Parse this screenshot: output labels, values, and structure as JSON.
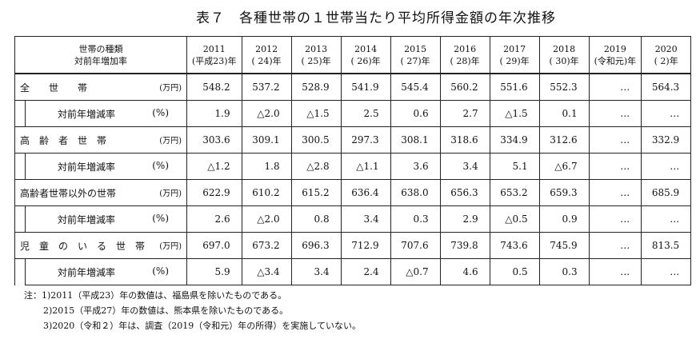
{
  "title": "表７　各種世帯の１世帯当たり平均所得金額の年次推移",
  "header": {
    "label_lines": [
      "世帯の種類",
      "対前年増加率"
    ],
    "years": [
      {
        "year": "2011",
        "era": "(平成23)年"
      },
      {
        "year": "2012",
        "era": "( 24)年"
      },
      {
        "year": "2013",
        "era": "( 25)年"
      },
      {
        "year": "2014",
        "era": "( 26)年"
      },
      {
        "year": "2015",
        "era": "( 27)年"
      },
      {
        "year": "2016",
        "era": "( 28)年"
      },
      {
        "year": "2017",
        "era": "( 29)年"
      },
      {
        "year": "2018",
        "era": "( 30)年"
      },
      {
        "year": "2019",
        "era": "(令和元)年"
      },
      {
        "year": "2020",
        "era": "( 2)年"
      }
    ]
  },
  "groups": [
    {
      "name": "全　　世　　帯",
      "unit": "(万円)",
      "values": [
        "548.2",
        "537.2",
        "528.9",
        "541.9",
        "545.4",
        "560.2",
        "551.6",
        "552.3",
        "…",
        "564.3"
      ],
      "rate_label": "対前年増減率",
      "rate_unit": "(%)",
      "rates": [
        "1.9",
        "△2.0",
        "△1.5",
        "2.5",
        "0.6",
        "2.7",
        "△1.5",
        "0.1",
        "…",
        "…"
      ]
    },
    {
      "name": "高　齢　者　世　帯",
      "unit": "(万円)",
      "values": [
        "303.6",
        "309.1",
        "300.5",
        "297.3",
        "308.1",
        "318.6",
        "334.9",
        "312.6",
        "…",
        "332.9"
      ],
      "rate_label": "対前年増減率",
      "rate_unit": "(%)",
      "rates": [
        "△1.2",
        "1.8",
        "△2.8",
        "△1.1",
        "3.6",
        "3.4",
        "5.1",
        "△6.7",
        "…",
        "…"
      ]
    },
    {
      "name": "高齢者世帯以外の世帯",
      "unit": "(万円)",
      "values": [
        "622.9",
        "610.2",
        "615.2",
        "636.4",
        "638.0",
        "656.3",
        "653.2",
        "659.3",
        "…",
        "685.9"
      ],
      "rate_label": "対前年増減率",
      "rate_unit": "(%)",
      "rates": [
        "2.6",
        "△2.0",
        "0.8",
        "3.4",
        "0.3",
        "2.9",
        "△0.5",
        "0.9",
        "…",
        "…"
      ]
    },
    {
      "name": "児　童　の　い　る　世　帯",
      "unit": "(万円)",
      "values": [
        "697.0",
        "673.2",
        "696.3",
        "712.9",
        "707.6",
        "739.8",
        "743.6",
        "745.9",
        "…",
        "813.5"
      ],
      "rate_label": "対前年増減率",
      "rate_unit": "(%)",
      "rates": [
        "5.9",
        "△3.4",
        "3.4",
        "2.4",
        "△0.7",
        "4.6",
        "0.5",
        "0.3",
        "…",
        "…"
      ]
    }
  ],
  "notes": [
    "注：1)2011（平成23）年の数値は、福島県を除いたものである。",
    "2)2015（平成27）年の数値は、熊本県を除いたものである。",
    "3)2020（令和２）年は、調査（2019（令和元）年の所得）を実施していない。"
  ]
}
